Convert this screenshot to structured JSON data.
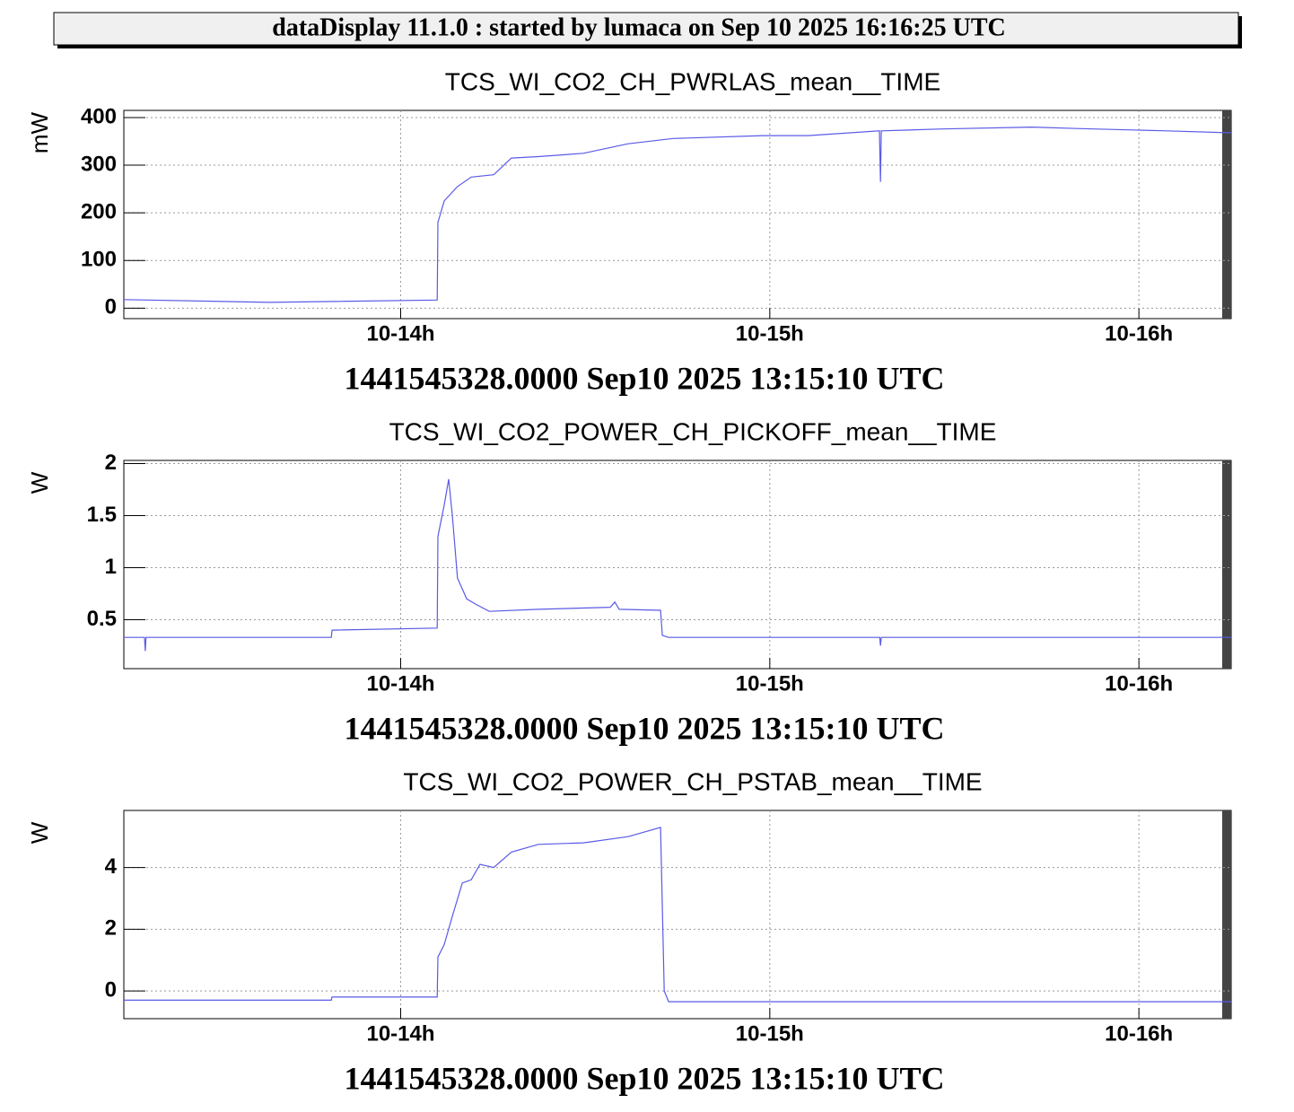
{
  "header": {
    "title": "dataDisplay 11.1.0 : started by lumaca on Sep 10 2025 16:16:25 UTC"
  },
  "chart_data": [
    {
      "type": "line",
      "title": "TCS_WI_CO2_CH_PWRLAS_mean__TIME",
      "y_label": "mW",
      "x_label": "1441545328.0000 Sep10 2025 13:15:10 UTC",
      "color": "#5a5ae6",
      "grid": true,
      "xlim": [
        13.25,
        16.25
      ],
      "xticks": [
        {
          "value": 14,
          "label": "10-14h"
        },
        {
          "value": 15,
          "label": "10-15h"
        },
        {
          "value": 16,
          "label": "10-16h"
        }
      ],
      "ylim": [
        -22,
        415
      ],
      "yticks": [
        0,
        100,
        200,
        300,
        400
      ],
      "x": [
        13.25,
        13.644,
        14.099,
        14.101,
        14.118,
        14.154,
        14.191,
        14.252,
        14.3,
        14.373,
        14.495,
        14.616,
        14.738,
        14.981,
        15.103,
        15.297,
        15.3,
        15.302,
        15.467,
        15.711,
        15.832,
        16.075,
        16.25
      ],
      "values": [
        18,
        12,
        17,
        180,
        225,
        255,
        275,
        280,
        315,
        318,
        325,
        345,
        356,
        362,
        362,
        372,
        265,
        372,
        376,
        380,
        377,
        372,
        368
      ]
    },
    {
      "type": "line",
      "title": "TCS_WI_CO2_POWER_CH_PICKOFF_mean__TIME",
      "y_label": "W",
      "x_label": "1441545328.0000 Sep10 2025 13:15:10 UTC",
      "color": "#5a5ae6",
      "grid": true,
      "xlim": [
        13.25,
        16.25
      ],
      "xticks": [
        {
          "value": 14,
          "label": "10-14h"
        },
        {
          "value": 15,
          "label": "10-15h"
        },
        {
          "value": 16,
          "label": "10-16h"
        }
      ],
      "ylim": [
        0.03,
        2.03
      ],
      "yticks": [
        0.5,
        1,
        1.5,
        2
      ],
      "x": [
        13.25,
        13.306,
        13.308,
        13.31,
        13.812,
        13.814,
        14.099,
        14.101,
        14.118,
        14.13,
        14.14,
        14.154,
        14.179,
        14.203,
        14.24,
        14.373,
        14.568,
        14.58,
        14.592,
        14.704,
        14.709,
        14.726,
        15.298,
        15.3,
        15.302,
        16.25
      ],
      "values": [
        0.33,
        0.33,
        0.2,
        0.33,
        0.33,
        0.4,
        0.42,
        1.3,
        1.6,
        1.85,
        1.5,
        0.9,
        0.7,
        0.65,
        0.58,
        0.6,
        0.62,
        0.67,
        0.6,
        0.59,
        0.35,
        0.33,
        0.33,
        0.25,
        0.33,
        0.33
      ]
    },
    {
      "type": "line",
      "title": "TCS_WI_CO2_POWER_CH_PSTAB_mean__TIME",
      "y_label": "W",
      "x_label": "1441545328.0000 Sep10 2025 13:15:10 UTC",
      "color": "#5a5ae6",
      "grid": true,
      "xlim": [
        13.25,
        16.25
      ],
      "xticks": [
        {
          "value": 14,
          "label": "10-14h"
        },
        {
          "value": 15,
          "label": "10-15h"
        },
        {
          "value": 16,
          "label": "10-16h"
        }
      ],
      "ylim": [
        -0.9,
        5.85
      ],
      "yticks": [
        0,
        2,
        4
      ],
      "x": [
        13.25,
        13.812,
        13.814,
        14.099,
        14.101,
        14.118,
        14.142,
        14.167,
        14.191,
        14.215,
        14.252,
        14.3,
        14.373,
        14.495,
        14.616,
        14.704,
        14.714,
        14.726,
        16.25
      ],
      "values": [
        -0.3,
        -0.3,
        -0.2,
        -0.2,
        1.1,
        1.5,
        2.5,
        3.5,
        3.6,
        4.1,
        4.0,
        4.5,
        4.75,
        4.8,
        5.0,
        5.3,
        0,
        -0.35,
        -0.35
      ]
    }
  ]
}
